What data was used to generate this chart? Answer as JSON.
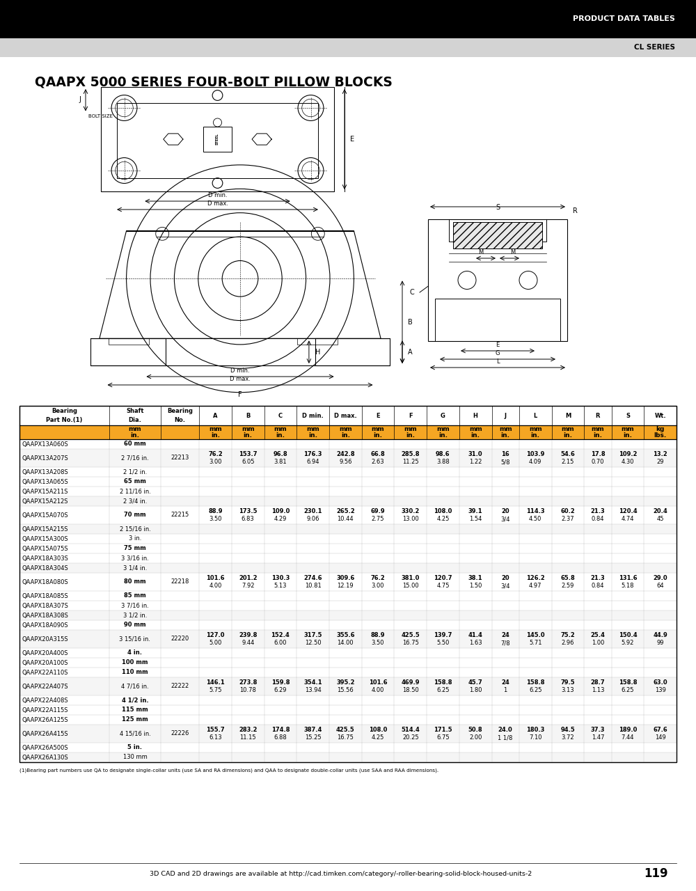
{
  "header_bg": "#000000",
  "header_text": "PRODUCT DATA TABLES",
  "subheader_bg": "#d3d3d3",
  "subheader_text": "CL SERIES",
  "page_title": "QAAPX 5000 SERIES FOUR-BOLT PILLOW BLOCKS",
  "page_number": "119",
  "footer_text": "3D CAD and 2D drawings are available at http://cad.timken.com/category/-roller-bearing-solid-block-housed-units-2",
  "footnote": "(1)Bearing part numbers use QA to designate single-collar units (use SA and RA dimensions) and QAA to designate double-collar units (use SAA and RAA dimensions).",
  "col_headers": [
    "Bearing\nPart No.(1)",
    "Shaft\nDia.",
    "Bearing\nNo.",
    "A",
    "B",
    "C",
    "D min.",
    "D max.",
    "E",
    "F",
    "G",
    "H",
    "J",
    "L",
    "M",
    "R",
    "S",
    "Wt."
  ],
  "col_units_mm": [
    "",
    "mm",
    "",
    "mm",
    "mm",
    "mm",
    "mm",
    "mm",
    "mm",
    "mm",
    "mm",
    "mm",
    "mm",
    "mm",
    "mm",
    "mm",
    "mm",
    "kg"
  ],
  "col_units_in": [
    "",
    "in.",
    "",
    "in.",
    "in.",
    "in.",
    "in.",
    "in.",
    "in.",
    "in.",
    "in.",
    "in.",
    "in.",
    "in.",
    "in.",
    "in.",
    "in.",
    "lbs."
  ],
  "orange_color": "#F5A623",
  "table_rows": [
    [
      "QAAPX13A060S",
      "60 mm",
      "",
      "",
      "",
      "",
      "",
      "",
      "",
      "",
      "",
      "",
      "",
      "",
      "",
      "",
      "",
      ""
    ],
    [
      "QAAPX13A207S",
      "2 7/16 in.",
      "22213",
      "76.2\n3.00",
      "153.7\n6.05",
      "96.8\n3.81",
      "176.3\n6.94",
      "242.8\n9.56",
      "66.8\n2.63",
      "285.8\n11.25",
      "98.6\n3.88",
      "31.0\n1.22",
      "16\n5/8",
      "103.9\n4.09",
      "54.6\n2.15",
      "17.8\n0.70",
      "109.2\n4.30",
      "13.2\n29"
    ],
    [
      "QAAPX13A208S",
      "2 1/2 in.",
      "",
      "",
      "",
      "",
      "",
      "",
      "",
      "",
      "",
      "",
      "",
      "",
      "",
      "",
      "",
      ""
    ],
    [
      "QAAPX13A065S",
      "65 mm",
      "",
      "",
      "",
      "",
      "",
      "",
      "",
      "",
      "",
      "",
      "",
      "",
      "",
      "",
      "",
      ""
    ],
    [
      "QAAPX15A211S",
      "2 11/16 in.",
      "",
      "",
      "",
      "",
      "",
      "",
      "",
      "",
      "",
      "",
      "",
      "",
      "",
      "",
      "",
      ""
    ],
    [
      "QAAPX15A212S",
      "2 3/4 in.",
      "",
      "",
      "",
      "",
      "",
      "",
      "",
      "",
      "",
      "",
      "",
      "",
      "",
      "",
      "",
      ""
    ],
    [
      "QAAPX15A070S",
      "70 mm",
      "22215",
      "88.9\n3.50",
      "173.5\n6.83",
      "109.0\n4.29",
      "230.1\n9.06",
      "265.2\n10.44",
      "69.9\n2.75",
      "330.2\n13.00",
      "108.0\n4.25",
      "39.1\n1.54",
      "20\n3/4",
      "114.3\n4.50",
      "60.2\n2.37",
      "21.3\n0.84",
      "120.4\n4.74",
      "20.4\n45"
    ],
    [
      "QAAPX15A215S",
      "2 15/16 in.",
      "",
      "",
      "",
      "",
      "",
      "",
      "",
      "",
      "",
      "",
      "",
      "",
      "",
      "",
      "",
      ""
    ],
    [
      "QAAPX15A300S",
      "3 in.",
      "",
      "",
      "",
      "",
      "",
      "",
      "",
      "",
      "",
      "",
      "",
      "",
      "",
      "",
      "",
      ""
    ],
    [
      "QAAPX15A075S",
      "75 mm",
      "",
      "",
      "",
      "",
      "",
      "",
      "",
      "",
      "",
      "",
      "",
      "",
      "",
      "",
      "",
      ""
    ],
    [
      "QAAPX18A303S",
      "3 3/16 in.",
      "",
      "",
      "",
      "",
      "",
      "",
      "",
      "",
      "",
      "",
      "",
      "",
      "",
      "",
      "",
      ""
    ],
    [
      "QAAPX18A304S",
      "3 1/4 in.",
      "",
      "",
      "",
      "",
      "",
      "",
      "",
      "",
      "",
      "",
      "",
      "",
      "",
      "",
      "",
      ""
    ],
    [
      "QAAPX18A080S",
      "80 mm",
      "22218",
      "101.6\n4.00",
      "201.2\n7.92",
      "130.3\n5.13",
      "274.6\n10.81",
      "309.6\n12.19",
      "76.2\n3.00",
      "381.0\n15.00",
      "120.7\n4.75",
      "38.1\n1.50",
      "20\n3/4",
      "126.2\n4.97",
      "65.8\n2.59",
      "21.3\n0.84",
      "131.6\n5.18",
      "29.0\n64"
    ],
    [
      "QAAPX18A085S",
      "85 mm",
      "",
      "",
      "",
      "",
      "",
      "",
      "",
      "",
      "",
      "",
      "",
      "",
      "",
      "",
      "",
      ""
    ],
    [
      "QAAPX18A307S",
      "3 7/16 in.",
      "",
      "",
      "",
      "",
      "",
      "",
      "",
      "",
      "",
      "",
      "",
      "",
      "",
      "",
      "",
      ""
    ],
    [
      "QAAPX18A308S",
      "3 1/2 in.",
      "",
      "",
      "",
      "",
      "",
      "",
      "",
      "",
      "",
      "",
      "",
      "",
      "",
      "",
      "",
      ""
    ],
    [
      "QAAPX18A090S",
      "90 mm",
      "",
      "",
      "",
      "",
      "",
      "",
      "",
      "",
      "",
      "",
      "",
      "",
      "",
      "",
      "",
      ""
    ],
    [
      "QAAPX20A315S",
      "3 15/16 in.",
      "22220",
      "127.0\n5.00",
      "239.8\n9.44",
      "152.4\n6.00",
      "317.5\n12.50",
      "355.6\n14.00",
      "88.9\n3.50",
      "425.5\n16.75",
      "139.7\n5.50",
      "41.4\n1.63",
      "24\n7/8",
      "145.0\n5.71",
      "75.2\n2.96",
      "25.4\n1.00",
      "150.4\n5.92",
      "44.9\n99"
    ],
    [
      "QAAPX20A400S",
      "4 in.",
      "",
      "",
      "",
      "",
      "",
      "",
      "",
      "",
      "",
      "",
      "",
      "",
      "",
      "",
      "",
      ""
    ],
    [
      "QAAPX20A100S",
      "100 mm",
      "",
      "",
      "",
      "",
      "",
      "",
      "",
      "",
      "",
      "",
      "",
      "",
      "",
      "",
      "",
      ""
    ],
    [
      "QAAPX22A110S",
      "110 mm",
      "",
      "",
      "",
      "",
      "",
      "",
      "",
      "",
      "",
      "",
      "",
      "",
      "",
      "",
      "",
      ""
    ],
    [
      "QAAPX22A407S",
      "4 7/16 in.",
      "22222",
      "146.1\n5.75",
      "273.8\n10.78",
      "159.8\n6.29",
      "354.1\n13.94",
      "395.2\n15.56",
      "101.6\n4.00",
      "469.9\n18.50",
      "158.8\n6.25",
      "45.7\n1.80",
      "24\n1",
      "158.8\n6.25",
      "79.5\n3.13",
      "28.7\n1.13",
      "158.8\n6.25",
      "63.0\n139"
    ],
    [
      "QAAPX22A408S",
      "4 1/2 in.",
      "",
      "",
      "",
      "",
      "",
      "",
      "",
      "",
      "",
      "",
      "",
      "",
      "",
      "",
      "",
      ""
    ],
    [
      "QAAPX22A115S",
      "115 mm",
      "",
      "",
      "",
      "",
      "",
      "",
      "",
      "",
      "",
      "",
      "",
      "",
      "",
      "",
      "",
      ""
    ],
    [
      "QAAPX26A125S",
      "125 mm",
      "",
      "",
      "",
      "",
      "",
      "",
      "",
      "",
      "",
      "",
      "",
      "",
      "",
      "",
      "",
      ""
    ],
    [
      "QAAPX26A415S",
      "4 15/16 in.",
      "22226",
      "155.7\n6.13",
      "283.2\n11.15",
      "174.8\n6.88",
      "387.4\n15.25",
      "425.5\n16.75",
      "108.0\n4.25",
      "514.4\n20.25",
      "171.5\n6.75",
      "50.8\n2.00",
      "24.0\n1 1/8",
      "180.3\n7.10",
      "94.5\n3.72",
      "37.3\n1.47",
      "189.0\n7.44",
      "67.6\n149"
    ],
    [
      "QAAPX26A500S",
      "5 in.",
      "",
      "",
      "",
      "",
      "",
      "",
      "",
      "",
      "",
      "",
      "",
      "",
      "",
      "",
      "",
      ""
    ],
    [
      "QAAPX26A130S",
      "130 mm",
      "",
      "",
      "",
      "",
      "",
      "",
      "",
      "",
      "",
      "",
      "",
      "",
      "",
      "",
      "",
      ""
    ]
  ],
  "highlight_rows": [
    0,
    3,
    6,
    9,
    12,
    13,
    16,
    18,
    19,
    20,
    22,
    23,
    24,
    26,
    28
  ],
  "mm_bold_rows": [
    0,
    3,
    6,
    9,
    12,
    13,
    16,
    18,
    19,
    20,
    22,
    23,
    24,
    26,
    28
  ],
  "page_bg": "#ffffff"
}
